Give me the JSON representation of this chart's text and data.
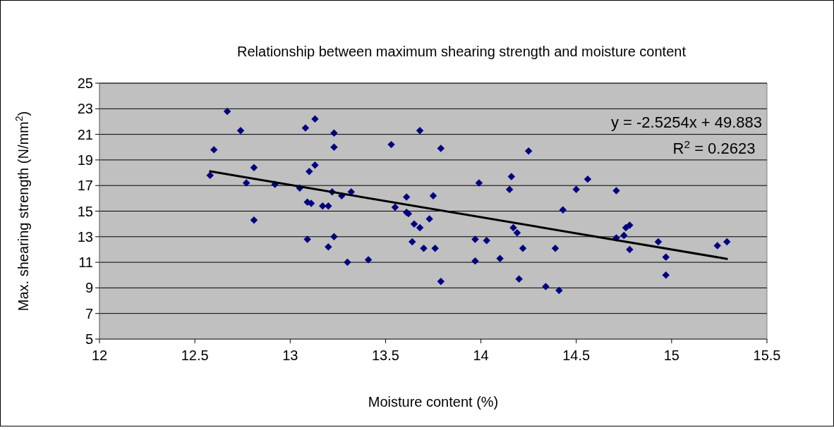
{
  "chart_data": {
    "type": "scatter",
    "title": "Relationship between maximum shearing strength and moisture content",
    "xlabel": "Moisture content (%)",
    "ylabel": "Max. shearing strength (N/mm$^{2}$)",
    "xlim": [
      12,
      15.5
    ],
    "xticks": [
      12,
      12.5,
      13,
      13.5,
      14,
      14.5,
      15,
      15.5
    ],
    "ylim": [
      5,
      25
    ],
    "yticks": [
      5,
      7,
      9,
      11,
      13,
      15,
      17,
      19,
      21,
      23,
      25
    ],
    "grid": "y",
    "annotations": [
      "y = -2.5254x + 49.883",
      "R$^{2}$ = 0.2623"
    ],
    "series": [
      {
        "color": "#000080",
        "marker": "diamond",
        "x": [
          12.58,
          12.6,
          12.67,
          12.74,
          12.77,
          12.81,
          12.81,
          12.92,
          13.05,
          13.08,
          13.09,
          13.09,
          13.1,
          13.11,
          13.13,
          13.13,
          13.17,
          13.2,
          13.2,
          13.22,
          13.23,
          13.23,
          13.23,
          13.27,
          13.3,
          13.32,
          13.41,
          13.53,
          13.55,
          13.61,
          13.61,
          13.62,
          13.65,
          13.68,
          13.64,
          13.7,
          13.68,
          13.73,
          13.75,
          13.76,
          13.79,
          13.79,
          13.97,
          13.97,
          13.99,
          14.03,
          14.1,
          14.15,
          14.16,
          14.17,
          14.19,
          14.2,
          14.22,
          14.25,
          14.34,
          14.39,
          14.41,
          14.43,
          14.5,
          14.56,
          14.71,
          14.71,
          14.75,
          14.76,
          14.78,
          14.78,
          14.93,
          14.97,
          14.97,
          15.24,
          15.29
        ],
        "values": [
          17.8,
          19.8,
          22.8,
          21.3,
          17.2,
          18.4,
          14.3,
          17.1,
          16.8,
          21.5,
          15.7,
          12.8,
          18.1,
          15.6,
          22.2,
          18.6,
          15.4,
          15.4,
          12.2,
          16.5,
          21.1,
          20.0,
          13.0,
          16.2,
          11.0,
          16.5,
          11.2,
          20.2,
          15.3,
          16.1,
          14.9,
          14.8,
          14.0,
          13.7,
          12.6,
          12.1,
          21.3,
          14.4,
          16.2,
          12.1,
          19.9,
          9.5,
          12.8,
          11.1,
          17.2,
          12.7,
          11.3,
          16.7,
          17.7,
          13.7,
          13.3,
          9.7,
          12.1,
          19.7,
          9.1,
          12.1,
          8.8,
          15.1,
          16.7,
          17.5,
          16.6,
          12.9,
          13.1,
          13.7,
          13.9,
          12.0,
          12.6,
          10.0,
          11.4,
          12.3,
          12.6
        ]
      },
      {
        "type": "line",
        "color": "#000000",
        "marker": "none",
        "line_style": "solid",
        "x": [
          12.58,
          15.29
        ],
        "values": [
          18.11,
          11.27
        ]
      }
    ]
  }
}
